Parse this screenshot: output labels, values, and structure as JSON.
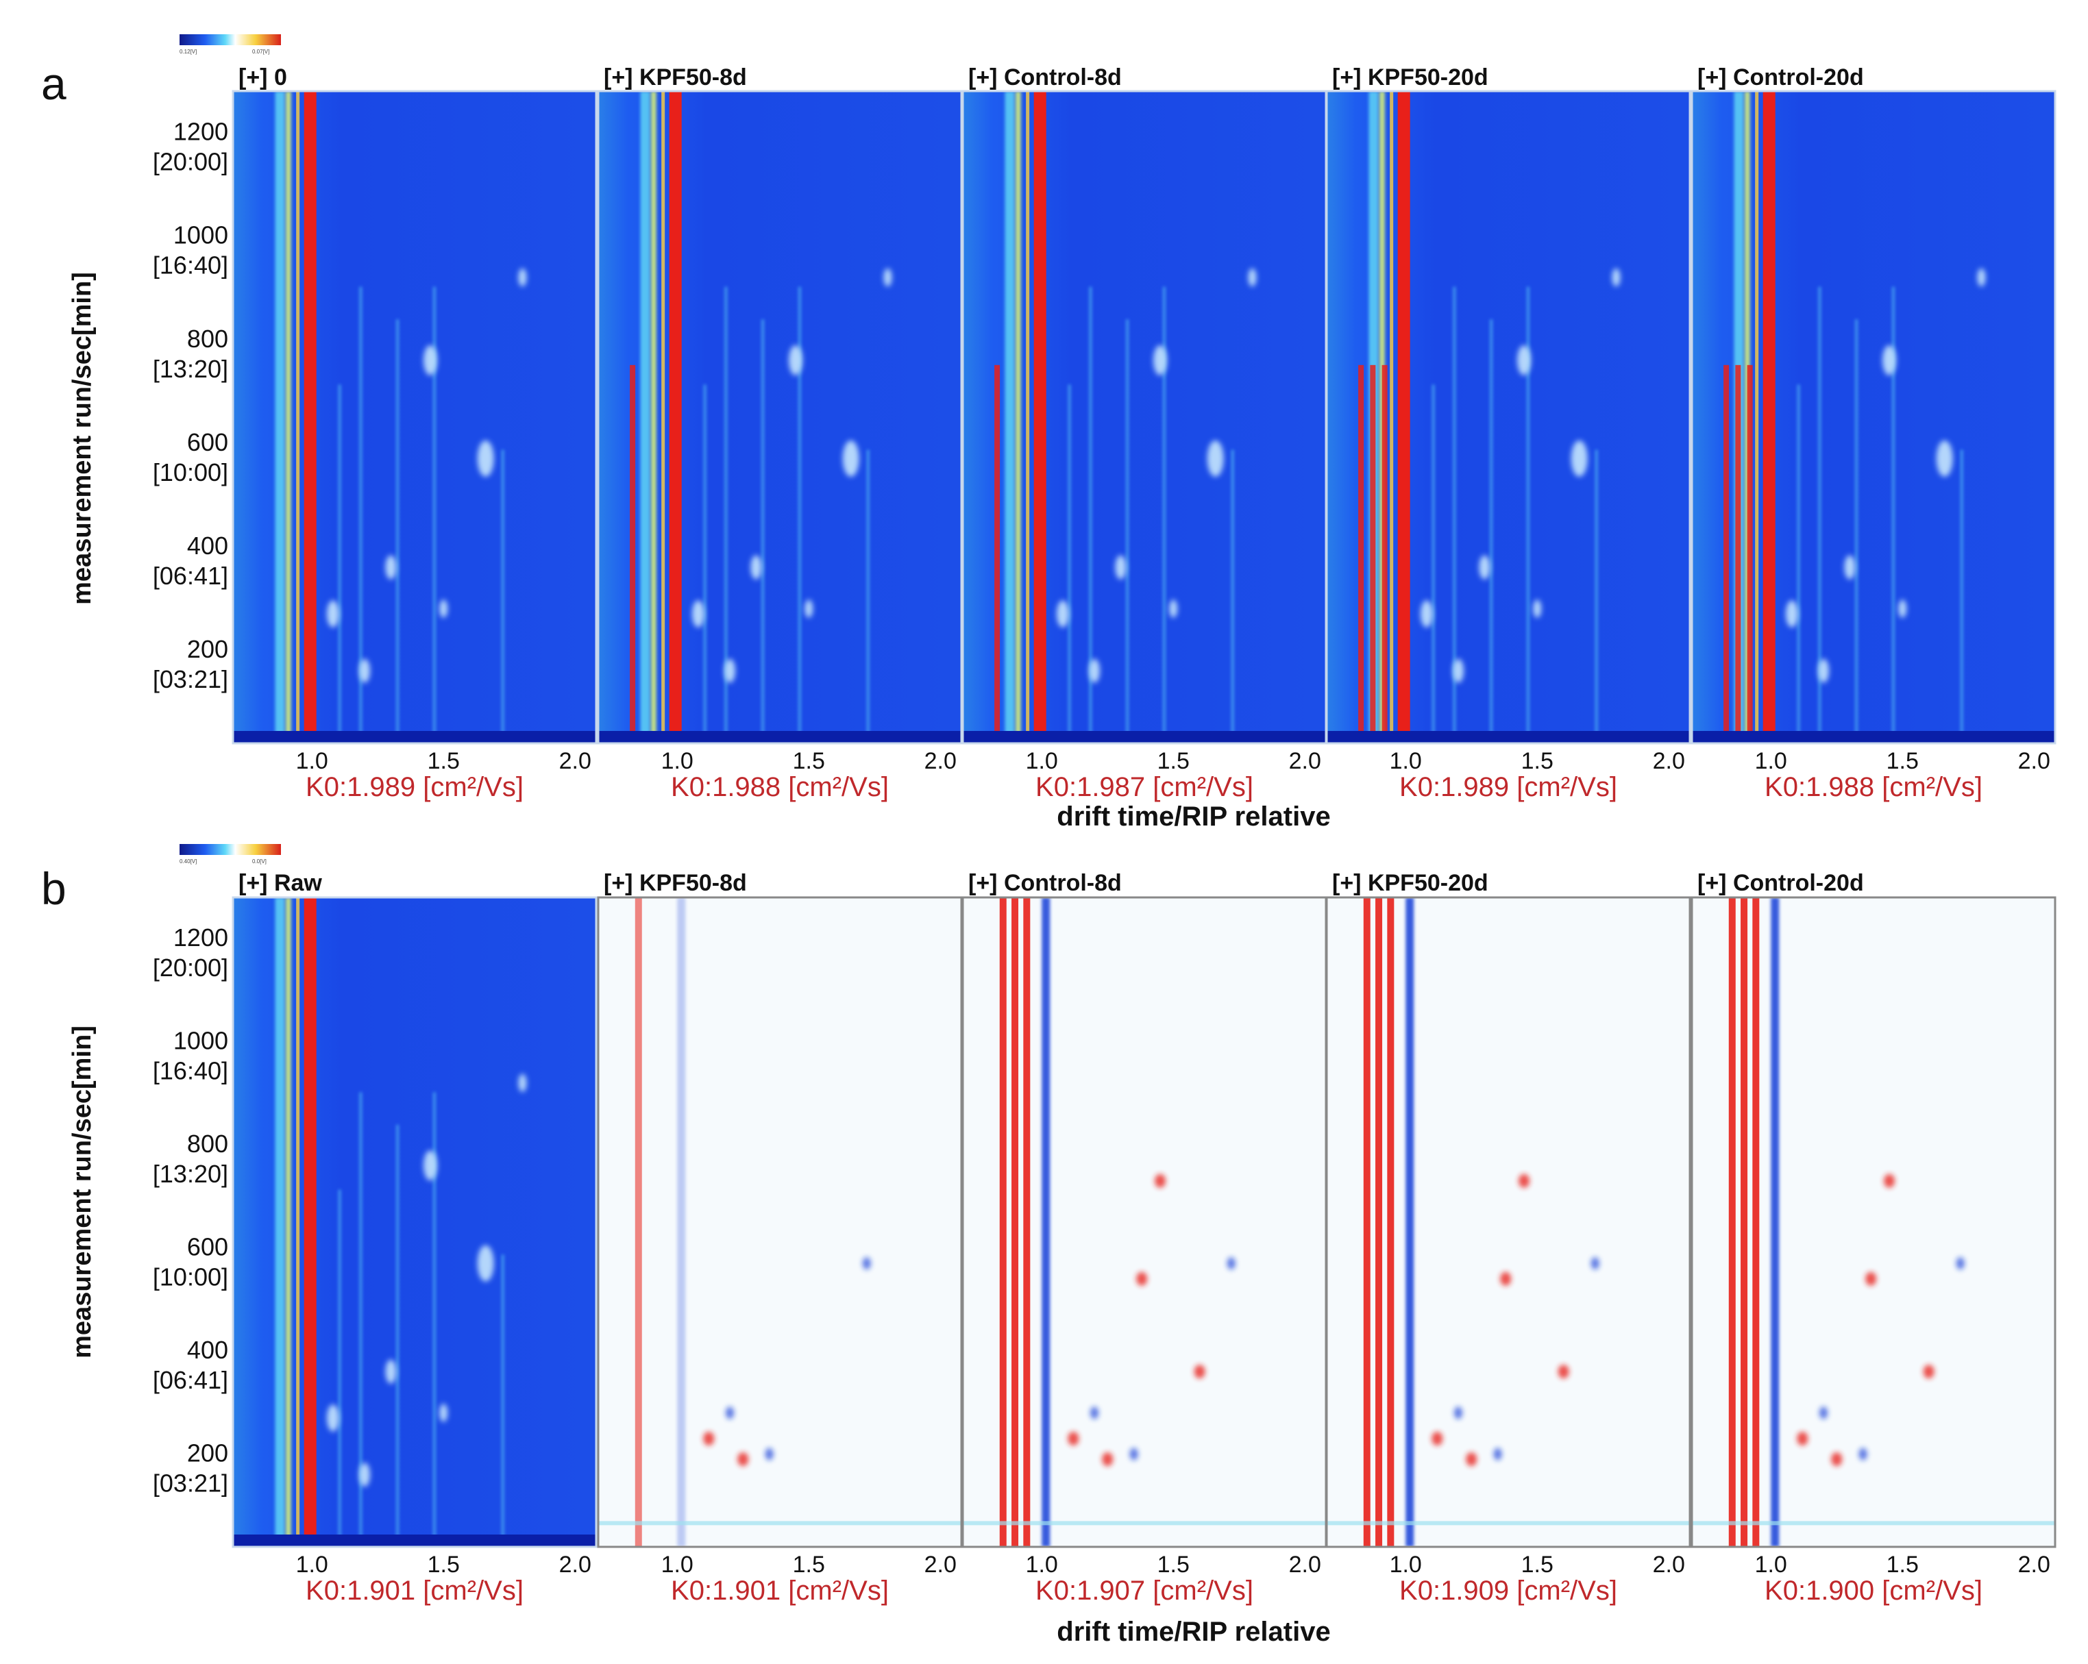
{
  "figure": {
    "colors": {
      "topo_bg": "#1a4ee8",
      "diff_bg": "#f6fafd",
      "red": "#e8201a",
      "blue": "#1540d8",
      "cyan": "#5fd4f5",
      "label_red": "#c0282b"
    }
  },
  "chart_data": [
    {
      "type": "heatmap",
      "panel_label": "a",
      "xlabel": "drift time/RIP relative",
      "ylabel": "measurement run/sec[min]",
      "colorbar_labels": [
        "0.12[V]",
        "0.07[V]"
      ],
      "xlim": [
        0.7,
        2.08
      ],
      "ylim": [
        40,
        1300
      ],
      "x_ticks": [
        "1.0",
        "1.5",
        "2.0"
      ],
      "x_tick_values": [
        1.0,
        1.5,
        2.0
      ],
      "y_ticks": [
        {
          "value": 1200,
          "label": "1200",
          "sub": "[20:00]"
        },
        {
          "value": 1000,
          "label": "1000",
          "sub": "[16:40]"
        },
        {
          "value": 800,
          "label": "800",
          "sub": "[13:20]"
        },
        {
          "value": 600,
          "label": "600",
          "sub": "[10:00]"
        },
        {
          "value": 400,
          "label": "400",
          "sub": "[06:41]"
        },
        {
          "value": 200,
          "label": "200",
          "sub": "[03:21]"
        }
      ],
      "panels": [
        {
          "title": "[+] 0",
          "k0": "K0:1.989 [cm²/Vs]",
          "mode": "topo"
        },
        {
          "title": "[+] KPF50-8d",
          "k0": "K0:1.988 [cm²/Vs]",
          "mode": "topo"
        },
        {
          "title": "[+] Control-8d",
          "k0": "K0:1.987 [cm²/Vs]",
          "mode": "topo"
        },
        {
          "title": "[+] KPF50-20d",
          "k0": "K0:1.989 [cm²/Vs]",
          "mode": "topo"
        },
        {
          "title": "[+] Control-20d",
          "k0": "K0:1.988 [cm²/Vs]",
          "mode": "topo"
        }
      ]
    },
    {
      "type": "heatmap",
      "panel_label": "b",
      "xlabel": "drift time/RIP relative",
      "ylabel": "measurement run/sec[min]",
      "colorbar_labels": [
        "0.40[V]",
        "0.0[V]"
      ],
      "xlim": [
        0.7,
        2.08
      ],
      "ylim": [
        40,
        1300
      ],
      "x_ticks": [
        "1.0",
        "1.5",
        "2.0"
      ],
      "x_tick_values": [
        1.0,
        1.5,
        2.0
      ],
      "y_ticks": [
        {
          "value": 1200,
          "label": "1200",
          "sub": "[20:00]"
        },
        {
          "value": 1000,
          "label": "1000",
          "sub": "[16:40]"
        },
        {
          "value": 800,
          "label": "800",
          "sub": "[13:20]"
        },
        {
          "value": 600,
          "label": "600",
          "sub": "[10:00]"
        },
        {
          "value": 400,
          "label": "400",
          "sub": "[06:41]"
        },
        {
          "value": 200,
          "label": "200",
          "sub": "[03:21]"
        }
      ],
      "panels": [
        {
          "title": "[+] Raw",
          "k0": "K0:1.901 [cm²/Vs]",
          "mode": "topo"
        },
        {
          "title": "[+] KPF50-8d",
          "k0": "K0:1.901 [cm²/Vs]",
          "mode": "diff"
        },
        {
          "title": "[+] Control-8d",
          "k0": "K0:1.907 [cm²/Vs]",
          "mode": "diff"
        },
        {
          "title": "[+] KPF50-20d",
          "k0": "K0:1.909 [cm²/Vs]",
          "mode": "diff"
        },
        {
          "title": "[+] Control-20d",
          "k0": "K0:1.900 [cm²/Vs]",
          "mode": "diff"
        }
      ]
    }
  ]
}
